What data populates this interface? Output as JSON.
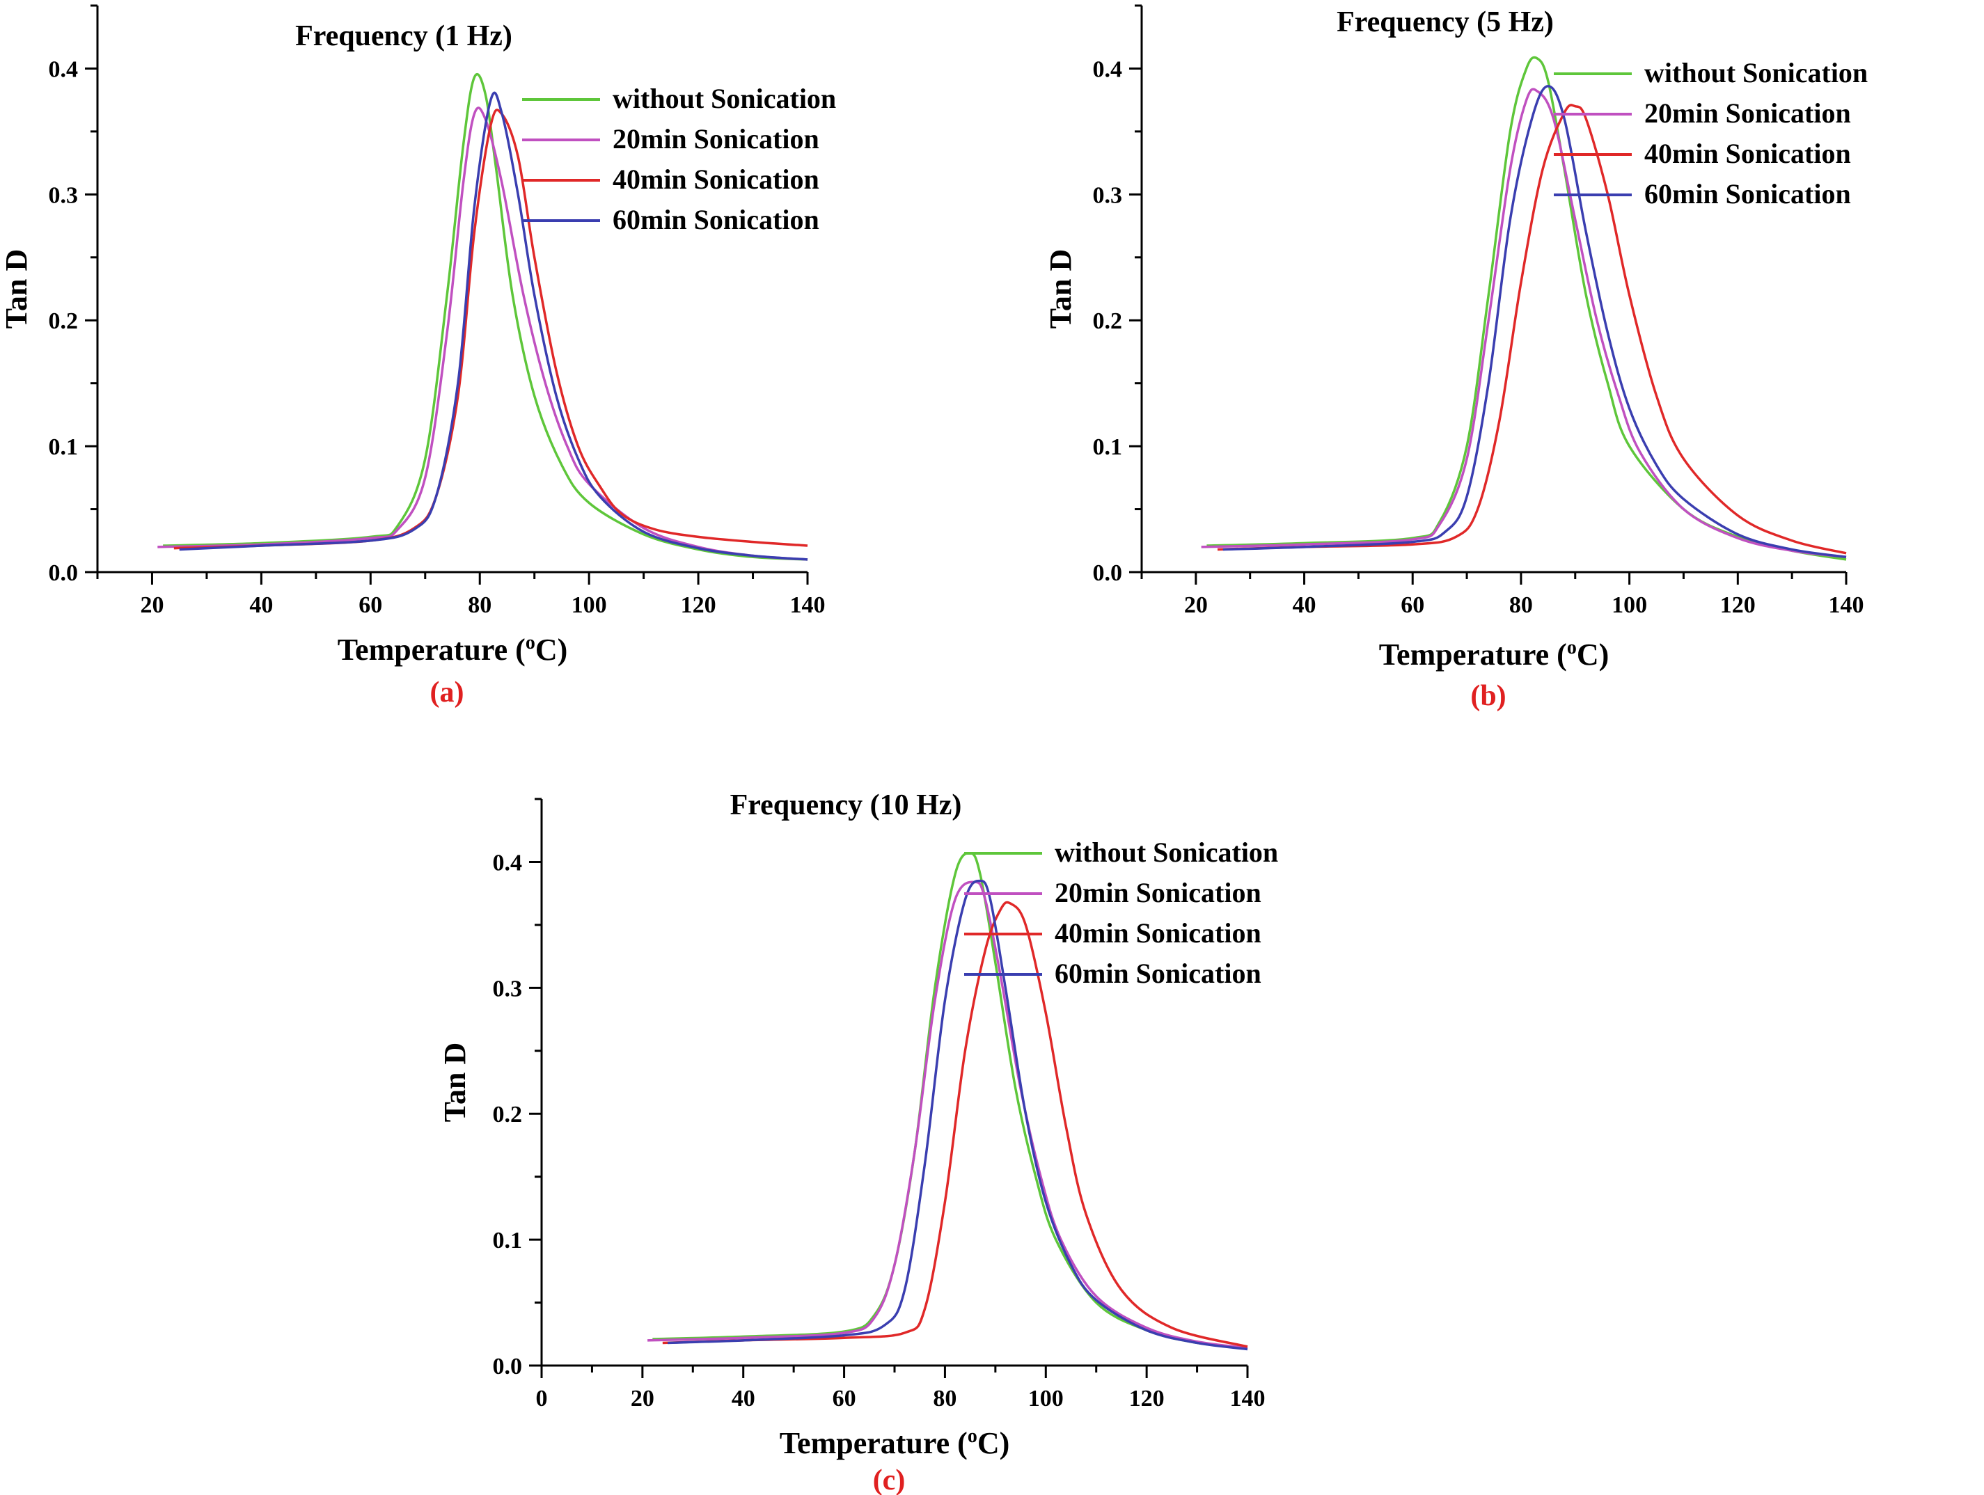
{
  "chart_data": [
    {
      "type": "line",
      "panel_label": "(a)",
      "title": "Frequency (1 Hz)",
      "xlabel": "Temperature (",
      "xlabel_sup": "o",
      "xlabel_end": "C)",
      "ylabel": "Tan D",
      "xlim": [
        10,
        140
      ],
      "ylim": [
        0,
        0.45
      ],
      "xticks": [
        20,
        40,
        60,
        80,
        100,
        120,
        140
      ],
      "yticks": [
        0.0,
        0.1,
        0.2,
        0.3,
        0.4
      ],
      "ytick_labels": [
        "0.0",
        "0.1",
        "0.2",
        "0.3",
        "0.4"
      ],
      "legend_position": "top-right",
      "series": [
        {
          "name": "without Sonication",
          "color": "#5ec63a",
          "x": [
            22,
            40,
            60,
            65,
            70,
            74,
            77,
            79,
            81,
            83,
            86,
            90,
            95,
            100,
            110,
            120,
            130,
            140
          ],
          "y": [
            0.021,
            0.023,
            0.028,
            0.037,
            0.09,
            0.22,
            0.34,
            0.393,
            0.38,
            0.32,
            0.22,
            0.14,
            0.085,
            0.055,
            0.03,
            0.018,
            0.012,
            0.01
          ]
        },
        {
          "name": "20min Sonication",
          "color": "#c050c0",
          "x": [
            21,
            40,
            60,
            65,
            70,
            74,
            77,
            79,
            81,
            84,
            88,
            92,
            96,
            100,
            110,
            120,
            130,
            140
          ],
          "y": [
            0.02,
            0.022,
            0.027,
            0.034,
            0.075,
            0.19,
            0.31,
            0.364,
            0.36,
            0.31,
            0.22,
            0.15,
            0.1,
            0.07,
            0.035,
            0.02,
            0.013,
            0.01
          ]
        },
        {
          "name": "40min Sonication",
          "color": "#e02828",
          "x": [
            24,
            40,
            60,
            68,
            72,
            76,
            79,
            82,
            84,
            87,
            90,
            94,
            98,
            102,
            106,
            112,
            120,
            130,
            140
          ],
          "y": [
            0.019,
            0.021,
            0.025,
            0.035,
            0.06,
            0.14,
            0.27,
            0.355,
            0.364,
            0.33,
            0.25,
            0.16,
            0.1,
            0.068,
            0.046,
            0.034,
            0.028,
            0.024,
            0.021
          ]
        },
        {
          "name": "60min Sonication",
          "color": "#3a3eb0",
          "x": [
            25,
            40,
            60,
            68,
            72,
            76,
            79,
            82,
            84,
            87,
            90,
            94,
            98,
            102,
            110,
            120,
            130,
            140
          ],
          "y": [
            0.018,
            0.021,
            0.025,
            0.034,
            0.06,
            0.15,
            0.29,
            0.375,
            0.365,
            0.3,
            0.22,
            0.14,
            0.09,
            0.06,
            0.032,
            0.019,
            0.013,
            0.01
          ]
        }
      ]
    },
    {
      "type": "line",
      "panel_label": "(b)",
      "title": "Frequency (5 Hz)",
      "xlabel": "Temperature (",
      "xlabel_sup": "o",
      "xlabel_end": "C)",
      "ylabel": "Tan D",
      "xlim": [
        10,
        140
      ],
      "ylim": [
        0,
        0.45
      ],
      "xticks": [
        20,
        40,
        60,
        80,
        100,
        120,
        140
      ],
      "yticks": [
        0.0,
        0.1,
        0.2,
        0.3,
        0.4
      ],
      "ytick_labels": [
        "0.0",
        "0.1",
        "0.2",
        "0.3",
        "0.4"
      ],
      "legend_position": "top-right",
      "series": [
        {
          "name": "without Sonication",
          "color": "#5ec63a",
          "x": [
            22,
            40,
            60,
            65,
            70,
            74,
            78,
            81,
            83,
            85,
            88,
            92,
            96,
            100,
            110,
            120,
            130,
            140
          ],
          "y": [
            0.021,
            0.023,
            0.027,
            0.04,
            0.1,
            0.22,
            0.35,
            0.4,
            0.408,
            0.39,
            0.32,
            0.22,
            0.15,
            0.1,
            0.05,
            0.028,
            0.017,
            0.01
          ]
        },
        {
          "name": "20min Sonication",
          "color": "#c050c0",
          "x": [
            21,
            40,
            60,
            65,
            70,
            74,
            78,
            81,
            83,
            86,
            90,
            94,
            98,
            102,
            110,
            120,
            130,
            140
          ],
          "y": [
            0.02,
            0.022,
            0.026,
            0.038,
            0.09,
            0.2,
            0.32,
            0.375,
            0.382,
            0.36,
            0.28,
            0.2,
            0.14,
            0.095,
            0.05,
            0.027,
            0.017,
            0.012
          ]
        },
        {
          "name": "40min Sonication",
          "color": "#e02828",
          "x": [
            24,
            40,
            60,
            68,
            72,
            76,
            80,
            84,
            88,
            90,
            92,
            96,
            100,
            105,
            110,
            120,
            130,
            140
          ],
          "y": [
            0.018,
            0.02,
            0.022,
            0.028,
            0.05,
            0.12,
            0.23,
            0.32,
            0.365,
            0.37,
            0.36,
            0.3,
            0.22,
            0.14,
            0.09,
            0.045,
            0.025,
            0.015
          ]
        },
        {
          "name": "60min Sonication",
          "color": "#3a3eb0",
          "x": [
            25,
            40,
            60,
            66,
            70,
            74,
            78,
            82,
            85,
            88,
            92,
            96,
            100,
            105,
            110,
            120,
            130,
            140
          ],
          "y": [
            0.018,
            0.02,
            0.024,
            0.032,
            0.06,
            0.15,
            0.28,
            0.36,
            0.386,
            0.36,
            0.27,
            0.19,
            0.13,
            0.085,
            0.058,
            0.03,
            0.018,
            0.012
          ]
        }
      ]
    },
    {
      "type": "line",
      "panel_label": "(c)",
      "title": "Frequency (10 Hz)",
      "xlabel": "Temperature (",
      "xlabel_sup": "o",
      "xlabel_end": "C)",
      "ylabel": "Tan D",
      "xlim": [
        0,
        140
      ],
      "ylim": [
        0,
        0.45
      ],
      "xticks": [
        0,
        20,
        40,
        60,
        80,
        100,
        120,
        140
      ],
      "yticks": [
        0.0,
        0.1,
        0.2,
        0.3,
        0.4
      ],
      "ytick_labels": [
        "0.0",
        "0.1",
        "0.2",
        "0.3",
        "0.4"
      ],
      "legend_position": "top-right",
      "series": [
        {
          "name": "without Sonication",
          "color": "#5ec63a",
          "x": [
            22,
            40,
            60,
            66,
            70,
            74,
            78,
            82,
            85,
            87,
            90,
            94,
            98,
            102,
            110,
            120,
            130,
            140
          ],
          "y": [
            0.021,
            0.023,
            0.027,
            0.04,
            0.08,
            0.17,
            0.3,
            0.39,
            0.407,
            0.39,
            0.32,
            0.22,
            0.15,
            0.1,
            0.05,
            0.028,
            0.018,
            0.014
          ]
        },
        {
          "name": "20min Sonication",
          "color": "#c050c0",
          "x": [
            21,
            40,
            60,
            66,
            70,
            74,
            78,
            82,
            86,
            88,
            91,
            95,
            99,
            103,
            110,
            120,
            130,
            140
          ],
          "y": [
            0.02,
            0.022,
            0.026,
            0.038,
            0.08,
            0.17,
            0.29,
            0.37,
            0.384,
            0.37,
            0.31,
            0.22,
            0.15,
            0.1,
            0.055,
            0.03,
            0.019,
            0.014
          ]
        },
        {
          "name": "40min Sonication",
          "color": "#e02828",
          "x": [
            24,
            40,
            60,
            72,
            76,
            80,
            84,
            88,
            91,
            93,
            96,
            100,
            104,
            108,
            115,
            125,
            140
          ],
          "y": [
            0.018,
            0.02,
            0.022,
            0.026,
            0.045,
            0.13,
            0.25,
            0.33,
            0.362,
            0.367,
            0.35,
            0.28,
            0.19,
            0.12,
            0.06,
            0.03,
            0.015
          ]
        },
        {
          "name": "60min Sonication",
          "color": "#3a3eb0",
          "x": [
            25,
            40,
            60,
            68,
            72,
            76,
            80,
            84,
            87,
            89,
            92,
            96,
            100,
            105,
            110,
            120,
            130,
            140
          ],
          "y": [
            0.018,
            0.02,
            0.024,
            0.032,
            0.06,
            0.16,
            0.29,
            0.37,
            0.385,
            0.37,
            0.3,
            0.2,
            0.13,
            0.08,
            0.052,
            0.028,
            0.018,
            0.013
          ]
        }
      ]
    }
  ]
}
